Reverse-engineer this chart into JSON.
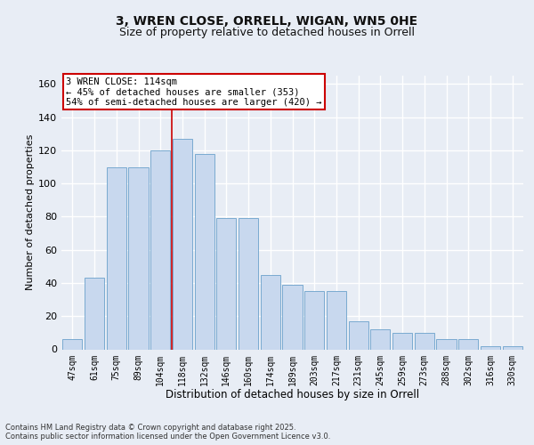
{
  "title": "3, WREN CLOSE, ORRELL, WIGAN, WN5 0HE",
  "subtitle": "Size of property relative to detached houses in Orrell",
  "xlabel": "Distribution of detached houses by size in Orrell",
  "ylabel": "Number of detached properties",
  "categories": [
    "47sqm",
    "61sqm",
    "75sqm",
    "89sqm",
    "104sqm",
    "118sqm",
    "132sqm",
    "146sqm",
    "160sqm",
    "174sqm",
    "189sqm",
    "203sqm",
    "217sqm",
    "231sqm",
    "245sqm",
    "259sqm",
    "273sqm",
    "288sqm",
    "302sqm",
    "316sqm",
    "330sqm"
  ],
  "bar_values": [
    6,
    43,
    110,
    110,
    120,
    127,
    118,
    79,
    79,
    45,
    39,
    35,
    35,
    17,
    12,
    10,
    10,
    6,
    6,
    2,
    2
  ],
  "bar_color": "#c8d8ee",
  "bar_edge_color": "#7aaad0",
  "annotation_text": "3 WREN CLOSE: 114sqm\n← 45% of detached houses are smaller (353)\n54% of semi-detached houses are larger (420) →",
  "annotation_box_color": "#ffffff",
  "annotation_box_edge_color": "#cc0000",
  "vline_x": 4.5,
  "vline_color": "#cc0000",
  "ylim": [
    0,
    165
  ],
  "yticks": [
    0,
    20,
    40,
    60,
    80,
    100,
    120,
    140,
    160
  ],
  "footer": "Contains HM Land Registry data © Crown copyright and database right 2025.\nContains public sector information licensed under the Open Government Licence v3.0.",
  "background_color": "#e8edf5",
  "plot_background_color": "#e8edf5",
  "grid_color": "#ffffff",
  "title_fontsize": 10,
  "subtitle_fontsize": 9
}
